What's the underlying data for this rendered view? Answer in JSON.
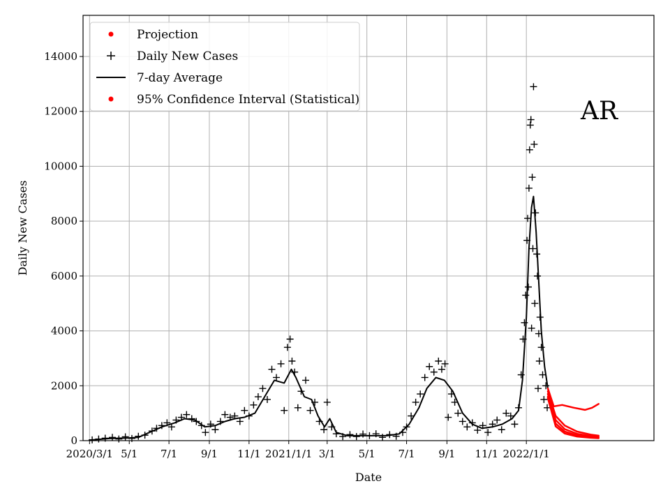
{
  "chart_data": {
    "type": "scatter",
    "xlabel": "Date",
    "ylabel": "Daily New Cases",
    "annotation": "AR",
    "x_range": [
      "2020-02-20",
      "2022-07-16"
    ],
    "ylim": [
      0,
      15500
    ],
    "grid": true,
    "legend_position": "top-left",
    "x_ticks": [
      {
        "date": "2020-03-01",
        "label": "2020/3/1"
      },
      {
        "date": "2020-05-01",
        "label": "5/1"
      },
      {
        "date": "2020-07-01",
        "label": "7/1"
      },
      {
        "date": "2020-09-01",
        "label": "9/1"
      },
      {
        "date": "2020-11-01",
        "label": "11/1"
      },
      {
        "date": "2021-01-01",
        "label": "2021/1/1"
      },
      {
        "date": "2021-03-01",
        "label": "3/1"
      },
      {
        "date": "2021-05-01",
        "label": "5/1"
      },
      {
        "date": "2021-07-01",
        "label": "7/1"
      },
      {
        "date": "2021-09-01",
        "label": "9/1"
      },
      {
        "date": "2021-11-01",
        "label": "11/1"
      },
      {
        "date": "2022-01-01",
        "label": "2022/1/1"
      }
    ],
    "y_ticks": [
      0,
      2000,
      4000,
      6000,
      8000,
      10000,
      12000,
      14000
    ],
    "legend": [
      {
        "name": "Projection",
        "marker": "dot",
        "color": "#ff0000"
      },
      {
        "name": "Daily New Cases",
        "marker": "plus",
        "color": "#000000"
      },
      {
        "name": "7-day Average",
        "marker": "line",
        "color": "#000000"
      },
      {
        "name": "95% Confidence Interval (Statistical)",
        "marker": "dot",
        "color": "#ff0000"
      }
    ],
    "average": {
      "name": "7-day Average",
      "color": "#000000",
      "points": [
        [
          "2020-03-01",
          20
        ],
        [
          "2020-04-01",
          80
        ],
        [
          "2020-05-01",
          100
        ],
        [
          "2020-05-15",
          120
        ],
        [
          "2020-06-01",
          300
        ],
        [
          "2020-06-20",
          500
        ],
        [
          "2020-07-10",
          650
        ],
        [
          "2020-07-25",
          800
        ],
        [
          "2020-08-10",
          750
        ],
        [
          "2020-08-25",
          500
        ],
        [
          "2020-09-10",
          550
        ],
        [
          "2020-09-25",
          700
        ],
        [
          "2020-10-10",
          800
        ],
        [
          "2020-10-25",
          850
        ],
        [
          "2020-11-10",
          1000
        ],
        [
          "2020-11-25",
          1600
        ],
        [
          "2020-12-10",
          2200
        ],
        [
          "2020-12-25",
          2100
        ],
        [
          "2021-01-05",
          2600
        ],
        [
          "2021-01-12",
          2300
        ],
        [
          "2021-01-25",
          1600
        ],
        [
          "2021-02-05",
          1500
        ],
        [
          "2021-02-15",
          900
        ],
        [
          "2021-02-25",
          500
        ],
        [
          "2021-03-05",
          800
        ],
        [
          "2021-03-15",
          300
        ],
        [
          "2021-04-01",
          180
        ],
        [
          "2021-05-01",
          180
        ],
        [
          "2021-06-01",
          180
        ],
        [
          "2021-06-20",
          250
        ],
        [
          "2021-07-05",
          600
        ],
        [
          "2021-07-20",
          1200
        ],
        [
          "2021-08-01",
          1900
        ],
        [
          "2021-08-15",
          2300
        ],
        [
          "2021-08-28",
          2200
        ],
        [
          "2021-09-10",
          1800
        ],
        [
          "2021-09-25",
          1000
        ],
        [
          "2021-10-10",
          600
        ],
        [
          "2021-10-25",
          450
        ],
        [
          "2021-11-10",
          500
        ],
        [
          "2021-11-25",
          600
        ],
        [
          "2021-12-10",
          800
        ],
        [
          "2021-12-20",
          1100
        ],
        [
          "2021-12-26",
          2200
        ],
        [
          "2022-01-01",
          4500
        ],
        [
          "2022-01-05",
          7000
        ],
        [
          "2022-01-09",
          8500
        ],
        [
          "2022-01-12",
          8900
        ],
        [
          "2022-01-16",
          7600
        ],
        [
          "2022-01-20",
          5800
        ],
        [
          "2022-01-24",
          4000
        ],
        [
          "2022-01-29",
          2700
        ],
        [
          "2022-02-03",
          1900
        ]
      ]
    },
    "daily_cases": {
      "name": "Daily New Cases",
      "color": "#000000",
      "points": [
        [
          "2020-03-05",
          30
        ],
        [
          "2020-03-15",
          60
        ],
        [
          "2020-03-25",
          90
        ],
        [
          "2020-04-05",
          120
        ],
        [
          "2020-04-15",
          60
        ],
        [
          "2020-04-25",
          140
        ],
        [
          "2020-05-05",
          80
        ],
        [
          "2020-05-15",
          160
        ],
        [
          "2020-05-25",
          200
        ],
        [
          "2020-06-05",
          350
        ],
        [
          "2020-06-12",
          450
        ],
        [
          "2020-06-20",
          550
        ],
        [
          "2020-06-28",
          650
        ],
        [
          "2020-07-05",
          500
        ],
        [
          "2020-07-12",
          750
        ],
        [
          "2020-07-20",
          850
        ],
        [
          "2020-07-28",
          950
        ],
        [
          "2020-08-05",
          800
        ],
        [
          "2020-08-12",
          700
        ],
        [
          "2020-08-20",
          550
        ],
        [
          "2020-08-26",
          300
        ],
        [
          "2020-09-03",
          600
        ],
        [
          "2020-09-10",
          400
        ],
        [
          "2020-09-18",
          700
        ],
        [
          "2020-09-25",
          950
        ],
        [
          "2020-10-03",
          850
        ],
        [
          "2020-10-10",
          900
        ],
        [
          "2020-10-18",
          700
        ],
        [
          "2020-10-25",
          1100
        ],
        [
          "2020-11-01",
          900
        ],
        [
          "2020-11-08",
          1300
        ],
        [
          "2020-11-15",
          1600
        ],
        [
          "2020-11-22",
          1900
        ],
        [
          "2020-11-29",
          1500
        ],
        [
          "2020-12-06",
          2600
        ],
        [
          "2020-12-13",
          2300
        ],
        [
          "2020-12-20",
          2800
        ],
        [
          "2020-12-25",
          1100
        ],
        [
          "2020-12-30",
          3400
        ],
        [
          "2021-01-03",
          3700
        ],
        [
          "2021-01-06",
          2900
        ],
        [
          "2021-01-10",
          2500
        ],
        [
          "2021-01-15",
          1200
        ],
        [
          "2021-01-20",
          1800
        ],
        [
          "2021-01-27",
          2200
        ],
        [
          "2021-02-03",
          1100
        ],
        [
          "2021-02-10",
          1400
        ],
        [
          "2021-02-17",
          700
        ],
        [
          "2021-02-24",
          400
        ],
        [
          "2021-03-01",
          1400
        ],
        [
          "2021-03-08",
          500
        ],
        [
          "2021-03-15",
          250
        ],
        [
          "2021-03-25",
          150
        ],
        [
          "2021-04-05",
          220
        ],
        [
          "2021-04-15",
          150
        ],
        [
          "2021-04-25",
          240
        ],
        [
          "2021-05-05",
          180
        ],
        [
          "2021-05-15",
          250
        ],
        [
          "2021-05-25",
          120
        ],
        [
          "2021-06-05",
          220
        ],
        [
          "2021-06-15",
          160
        ],
        [
          "2021-06-25",
          300
        ],
        [
          "2021-07-01",
          500
        ],
        [
          "2021-07-08",
          900
        ],
        [
          "2021-07-15",
          1400
        ],
        [
          "2021-07-22",
          1700
        ],
        [
          "2021-07-29",
          2300
        ],
        [
          "2021-08-05",
          2700
        ],
        [
          "2021-08-12",
          2500
        ],
        [
          "2021-08-19",
          2900
        ],
        [
          "2021-08-24",
          2600
        ],
        [
          "2021-08-29",
          2800
        ],
        [
          "2021-09-03",
          850
        ],
        [
          "2021-09-08",
          1700
        ],
        [
          "2021-09-13",
          1400
        ],
        [
          "2021-09-18",
          1000
        ],
        [
          "2021-09-25",
          700
        ],
        [
          "2021-10-02",
          500
        ],
        [
          "2021-10-10",
          650
        ],
        [
          "2021-10-18",
          380
        ],
        [
          "2021-10-26",
          550
        ],
        [
          "2021-11-03",
          300
        ],
        [
          "2021-11-10",
          600
        ],
        [
          "2021-11-17",
          750
        ],
        [
          "2021-11-24",
          400
        ],
        [
          "2021-12-01",
          1000
        ],
        [
          "2021-12-08",
          900
        ],
        [
          "2021-12-14",
          600
        ],
        [
          "2021-12-20",
          1200
        ],
        [
          "2021-12-24",
          2400
        ],
        [
          "2021-12-27",
          3700
        ],
        [
          "2021-12-29",
          4300
        ],
        [
          "2021-12-31",
          5300
        ],
        [
          "2022-01-02",
          7300
        ],
        [
          "2022-01-03",
          8100
        ],
        [
          "2022-01-04",
          5600
        ],
        [
          "2022-01-05",
          9200
        ],
        [
          "2022-01-06",
          10600
        ],
        [
          "2022-01-07",
          11500
        ],
        [
          "2022-01-08",
          11700
        ],
        [
          "2022-01-09",
          4100
        ],
        [
          "2022-01-10",
          9600
        ],
        [
          "2022-01-11",
          7000
        ],
        [
          "2022-01-12",
          12900
        ],
        [
          "2022-01-13",
          10800
        ],
        [
          "2022-01-14",
          5000
        ],
        [
          "2022-01-15",
          8300
        ],
        [
          "2022-01-17",
          6800
        ],
        [
          "2022-01-18",
          6000
        ],
        [
          "2022-01-19",
          1900
        ],
        [
          "2022-01-20",
          3900
        ],
        [
          "2022-01-21",
          2900
        ],
        [
          "2022-01-22",
          4500
        ],
        [
          "2022-01-24",
          3400
        ],
        [
          "2022-01-26",
          2400
        ],
        [
          "2022-01-28",
          1500
        ],
        [
          "2022-01-31",
          2000
        ],
        [
          "2022-02-02",
          1200
        ]
      ]
    },
    "projection": {
      "name": "Projection",
      "color": "#ff0000",
      "curves": [
        [
          [
            "2022-02-03",
            1900
          ],
          [
            "2022-02-12",
            1250
          ],
          [
            "2022-02-25",
            1300
          ],
          [
            "2022-03-15",
            1200
          ],
          [
            "2022-04-01",
            1120
          ],
          [
            "2022-04-12",
            1200
          ],
          [
            "2022-04-22",
            1340
          ]
        ],
        [
          [
            "2022-02-03",
            1800
          ],
          [
            "2022-02-15",
            900
          ],
          [
            "2022-03-01",
            550
          ],
          [
            "2022-03-20",
            330
          ],
          [
            "2022-04-10",
            220
          ],
          [
            "2022-04-22",
            180
          ]
        ],
        [
          [
            "2022-02-03",
            1700
          ],
          [
            "2022-02-15",
            750
          ],
          [
            "2022-03-01",
            420
          ],
          [
            "2022-03-20",
            250
          ],
          [
            "2022-04-10",
            170
          ],
          [
            "2022-04-22",
            140
          ]
        ],
        [
          [
            "2022-02-03",
            1600
          ],
          [
            "2022-02-15",
            620
          ],
          [
            "2022-03-01",
            330
          ],
          [
            "2022-03-20",
            190
          ],
          [
            "2022-04-10",
            130
          ],
          [
            "2022-04-22",
            110
          ]
        ],
        [
          [
            "2022-02-03",
            1550
          ],
          [
            "2022-02-15",
            520
          ],
          [
            "2022-03-01",
            260
          ],
          [
            "2022-03-20",
            150
          ],
          [
            "2022-04-10",
            105
          ],
          [
            "2022-04-22",
            90
          ]
        ]
      ]
    }
  }
}
